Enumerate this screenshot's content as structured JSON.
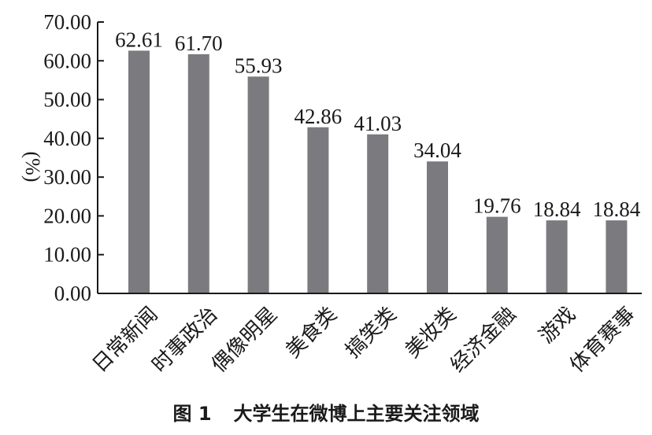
{
  "chart_data": {
    "type": "bar",
    "categories": [
      "日常新闻",
      "时事政治",
      "偶像明星",
      "美食类",
      "搞笑类",
      "美妆类",
      "经济金融",
      "游戏",
      "体育赛事"
    ],
    "values": [
      62.61,
      61.7,
      55.93,
      42.86,
      41.03,
      34.04,
      19.76,
      18.84,
      18.84
    ],
    "data_labels": [
      "62.61",
      "61.70",
      "55.93",
      "42.86",
      "41.03",
      "34.04",
      "19.76",
      "18.84",
      "18.84"
    ],
    "y_ticks": [
      "0.00",
      "10.00",
      "20.00",
      "30.00",
      "40.00",
      "50.00",
      "60.00",
      "70.00"
    ],
    "ylim": [
      0,
      70
    ],
    "ylabel": "(%)",
    "xlabel": "",
    "bar_color": "#7b7b7f",
    "grid": false,
    "legend": false
  },
  "caption": {
    "figure_no": "图 1",
    "text": "大学生在微博上主要关注领域"
  }
}
